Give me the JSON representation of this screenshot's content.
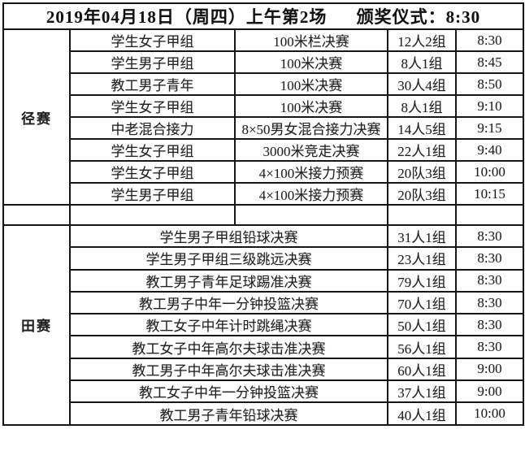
{
  "header": {
    "session": "2019年04月18日（周四）上午第2场",
    "ceremony": "颁奖仪式：8:30"
  },
  "sections": [
    {
      "label": "径赛",
      "rows": [
        {
          "group": "学生女子甲组",
          "event": "100米栏决赛",
          "count": "12人2组",
          "time": "8:30"
        },
        {
          "group": "学生男子甲组",
          "event": "100米决赛",
          "count": "8人1组",
          "time": "8:45"
        },
        {
          "group": "教工男子青年",
          "event": "100米决赛",
          "count": "30人4组",
          "time": "8:50"
        },
        {
          "group": "学生女子甲组",
          "event": "100米决赛",
          "count": "8人1组",
          "time": "9:10"
        },
        {
          "group": "中老混合接力",
          "event": "8×50男女混合接力决赛",
          "count": "14人5组",
          "time": "9:15"
        },
        {
          "group": "学生女子甲组",
          "event": "3000米竞走决赛",
          "count": "22人1组",
          "time": "9:40"
        },
        {
          "group": "学生女子甲组",
          "event": "4×100米接力预赛",
          "count": "20队3组",
          "time": "10:00"
        },
        {
          "group": "学生男子甲组",
          "event": "4×100米接力预赛",
          "count": "20队3组",
          "time": "10:15"
        }
      ]
    },
    {
      "label": "田赛",
      "rows": [
        {
          "event": "学生男子甲组铅球决赛",
          "count": "31人1组",
          "time": "8:30"
        },
        {
          "event": "学生男子甲组三级跳远决赛",
          "count": "23人1组",
          "time": "8:30"
        },
        {
          "event": "教工男子青年足球踢准决赛",
          "count": "79人1组",
          "time": "8:30"
        },
        {
          "event": "教工男子中年一分钟投篮决赛",
          "count": "70人1组",
          "time": "8:30"
        },
        {
          "event": "教工女子中年计时跳绳决赛",
          "count": "50人1组",
          "time": "8:30"
        },
        {
          "event": "教工女子中年高尔夫球击准决赛",
          "count": "56人1组",
          "time": "8:30"
        },
        {
          "event": "教工男子中年高尔夫球击准决赛",
          "count": "60人1组",
          "time": "9:00"
        },
        {
          "event": "教工女子中年一分钟投篮决赛",
          "count": "37人1组",
          "time": "9:00"
        },
        {
          "event": "教工男子青年铅球决赛",
          "count": "40人1组",
          "time": "10:00"
        }
      ]
    }
  ]
}
